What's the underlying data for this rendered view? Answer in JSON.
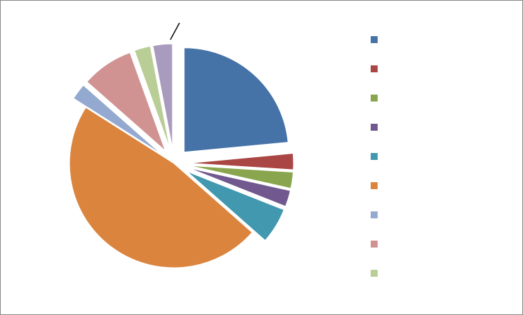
{
  "chart_data": {
    "type": "pie",
    "title": "",
    "start_angle_deg": 0,
    "direction": "clockwise",
    "slices": [
      {
        "label": "",
        "value": 23.5,
        "color": "#4572A7",
        "exploded": true
      },
      {
        "label": "",
        "value": 2.5,
        "color": "#AA4643",
        "exploded": true
      },
      {
        "label": "",
        "value": 2.5,
        "color": "#89A54E",
        "exploded": true
      },
      {
        "label": "",
        "value": 2.5,
        "color": "#71588F",
        "exploded": true
      },
      {
        "label": "",
        "value": 5.5,
        "color": "#4198AF",
        "exploded": true
      },
      {
        "label": "",
        "value": 47.5,
        "color": "#DB843D",
        "exploded": false
      },
      {
        "label": "",
        "value": 2.5,
        "color": "#93A9CF",
        "exploded": true
      },
      {
        "label": "",
        "value": 8.0,
        "color": "#D19392",
        "exploded": true
      },
      {
        "label": "",
        "value": 2.5,
        "color": "#B9CD96",
        "exploded": true
      },
      {
        "label": "",
        "value": 3.0,
        "color": "#A99BBD",
        "exploded": true
      }
    ],
    "legend": {
      "position": "right",
      "shown_entries": 9
    }
  }
}
